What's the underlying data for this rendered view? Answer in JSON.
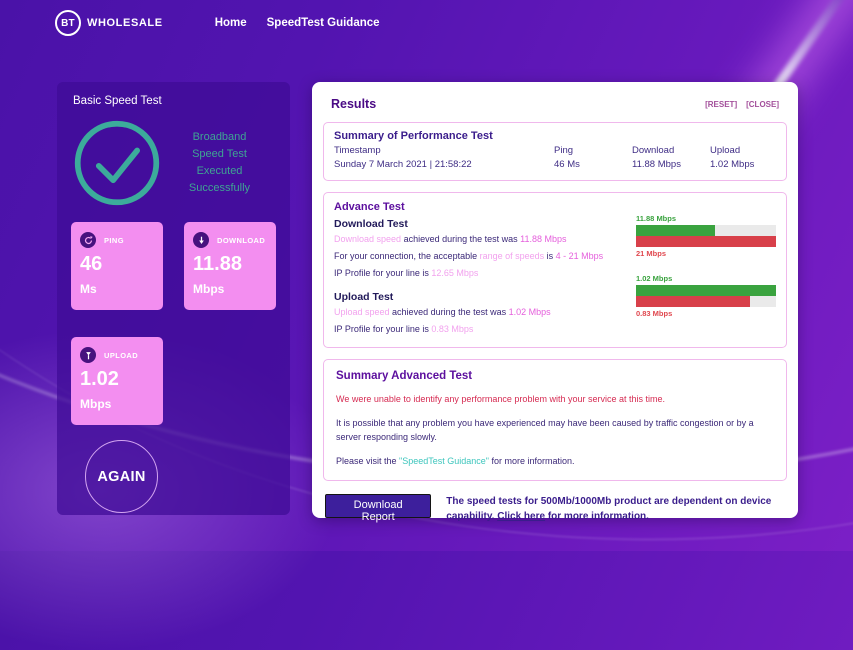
{
  "nav": {
    "logo_bt": "BT",
    "logo_wholesale": "WHOLESALE",
    "links": {
      "home": "Home",
      "guidance": "SpeedTest Guidance"
    }
  },
  "basic_test": {
    "title": "Basic Speed Test",
    "status_lines": {
      "l1": "Broadband",
      "l2": "Speed Test",
      "l3": "Executed",
      "l4": "Successfully"
    },
    "cards": {
      "ping": {
        "label": "PING",
        "value": "46",
        "unit": "Ms"
      },
      "download": {
        "label": "DOWNLOAD",
        "value": "11.88",
        "unit": "Mbps"
      },
      "upload": {
        "label": "UPLOAD",
        "value": "1.02",
        "unit": "Mbps"
      }
    },
    "again_label": "AGAIN"
  },
  "results": {
    "title": "Results",
    "reset_label": "[RESET]",
    "close_label": "[CLOSE]",
    "summary": {
      "title": "Summary of Performance Test",
      "timestamp_label": "Timestamp",
      "timestamp_value": "Sunday 7 March 2021 | 21:58:22",
      "ping_label": "Ping",
      "ping_value": "46 Ms",
      "download_label": "Download",
      "download_value": "11.88 Mbps",
      "upload_label": "Upload",
      "upload_value": "1.02 Mbps"
    },
    "advance": {
      "title": "Advance Test",
      "download_heading": "Download Test",
      "dl_l1_a": "Download speed",
      "dl_l1_b": " achieved during the test was ",
      "dl_l1_c": "11.88 Mbps",
      "dl_l2_a": "For your connection, the acceptable ",
      "dl_l2_b": "range of speeds",
      "dl_l2_c": " is ",
      "dl_l2_d": "4 - 21 Mbps",
      "dl_l3_a": "IP Profile for your line is ",
      "dl_l3_b": "12.65 Mbps",
      "upload_heading": "Upload Test",
      "ul_l1_a": "Upload speed",
      "ul_l1_b": " achieved during the test was ",
      "ul_l1_c": "1.02 Mbps",
      "ul_l2_a": "IP Profile for your line is ",
      "ul_l2_b": "0.83 Mbps"
    },
    "summary_advanced": {
      "title": "Summary Advanced Test",
      "p1": "We were unable to identify any performance problem with your service at this time.",
      "p2": "It is possible that any problem you have experienced may have been caused by traffic congestion or by a server responding slowly.",
      "p3_a": "Please visit the ",
      "p3_link": "\"SpeedTest Guidance\"",
      "p3_b": " for more information."
    },
    "footer": {
      "button_label": "Download Report",
      "note_a": "The speed tests for 500Mb/1000Mb product are dependent on device capability. ",
      "note_link": "Click here",
      "note_b": " for more information."
    }
  },
  "colors": {
    "accent_pink_card": "#f38ef0",
    "panel_purple": "#3e0b96",
    "bar_green": "#3aa33f",
    "bar_red": "#d8404a",
    "teal_success": "#3fa493"
  },
  "chart_data": [
    {
      "type": "bar",
      "title": "Download Test",
      "orientation": "horizontal",
      "xlim": [
        0,
        21
      ],
      "bars": [
        {
          "name": "achieved-speed",
          "label": "11.88 Mbps",
          "value": 11.88,
          "color": "#3aa33f",
          "pct": 56.6
        },
        {
          "name": "range-maximum",
          "label": "21 Mbps",
          "value": 21,
          "color": "#d8404a",
          "pct": 100
        }
      ]
    },
    {
      "type": "bar",
      "title": "Upload Test",
      "orientation": "horizontal",
      "xlim": [
        0,
        1.02
      ],
      "bars": [
        {
          "name": "achieved-speed",
          "label": "1.02 Mbps",
          "value": 1.02,
          "color": "#3aa33f",
          "pct": 100
        },
        {
          "name": "ip-profile",
          "label": "0.83 Mbps",
          "value": 0.83,
          "color": "#d8404a",
          "pct": 81.4
        }
      ]
    }
  ]
}
